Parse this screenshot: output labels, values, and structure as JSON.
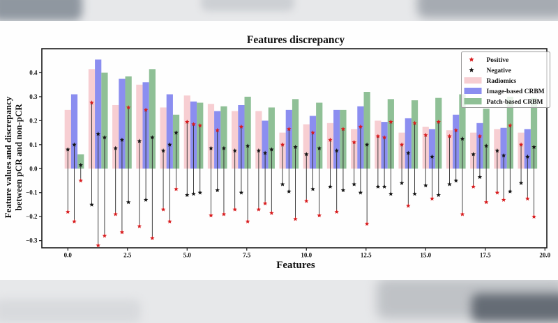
{
  "chart_data": {
    "type": "bar",
    "title": "Features discrepancy",
    "xlabel": "Features",
    "ylabel_line1": "Feature values and discrepancy",
    "ylabel_line2": "between pCR and non-pCR",
    "x": [
      0,
      1,
      2,
      3,
      4,
      5,
      6,
      7,
      8,
      9,
      10,
      11,
      12,
      13,
      14,
      15,
      16,
      17,
      18,
      19
    ],
    "x_ticks": [
      0.0,
      2.5,
      5.0,
      7.5,
      10.0,
      12.5,
      15.0,
      17.5,
      20.0
    ],
    "x_tick_labels": [
      "0.0",
      "2.5",
      "5.0",
      "7.5",
      "10.0",
      "12.5",
      "15.0",
      "17.5",
      "20.0"
    ],
    "y_ticks": [
      0.4,
      0.3,
      0.2,
      0.1,
      0.0,
      -0.1,
      -0.2,
      -0.3
    ],
    "y_tick_labels": [
      "0.4",
      "0.3",
      "0.2",
      "0.1",
      "0.0",
      "−0.1",
      "−0.2",
      "−0.3"
    ],
    "xlim": [
      -1.09,
      20.08
    ],
    "ylim": [
      -0.33,
      0.5
    ],
    "bar_width": 0.27,
    "bar_offsets": [
      0,
      0.27,
      0.54
    ],
    "grid": false,
    "legend_position": "upper right",
    "series": [
      {
        "name": "Radiomics",
        "color": "#f6c9cd",
        "values": [
          0.245,
          0.415,
          0.265,
          0.35,
          0.255,
          0.305,
          0.27,
          0.24,
          0.24,
          0.15,
          0.185,
          0.19,
          0.165,
          0.2,
          0.15,
          0.175,
          0.16,
          0.15,
          0.165,
          0.15
        ]
      },
      {
        "name": "Image-based CRBM",
        "color": "#7e82ee",
        "values": [
          0.31,
          0.455,
          0.375,
          0.36,
          0.31,
          0.28,
          0.24,
          0.265,
          0.2,
          0.245,
          0.22,
          0.245,
          0.26,
          0.195,
          0.21,
          0.165,
          0.225,
          0.19,
          0.17,
          0.165
        ]
      },
      {
        "name": "Patch-based CRBM",
        "color": "#83b98b",
        "values": [
          0.06,
          0.4,
          0.385,
          0.415,
          0.225,
          0.275,
          0.26,
          0.3,
          0.255,
          0.29,
          0.275,
          0.245,
          0.32,
          0.29,
          0.285,
          0.295,
          0.31,
          0.25,
          0.3,
          0.295
        ]
      }
    ],
    "markers": {
      "positive": {
        "name": "Positive",
        "color": "#d81c1e",
        "values": [
          [
            -0.18,
            -0.22,
            -0.05
          ],
          [
            0.275,
            -0.32,
            -0.28
          ],
          [
            -0.19,
            -0.265,
            0.255
          ],
          [
            -0.24,
            0.245,
            -0.29
          ],
          [
            -0.17,
            -0.22,
            -0.085
          ],
          [
            0.195,
            0.185,
            0.18
          ],
          [
            -0.195,
            0.16,
            -0.19
          ],
          [
            -0.17,
            0.175,
            -0.22
          ],
          [
            -0.17,
            -0.145,
            -0.185
          ],
          [
            0.1,
            0.165,
            -0.21
          ],
          [
            -0.135,
            0.15,
            -0.195
          ],
          [
            0.12,
            -0.18,
            0.165
          ],
          [
            0.11,
            0.175,
            -0.23
          ],
          [
            0.135,
            0.13,
            0.195
          ],
          [
            0.1,
            -0.155,
            0.19
          ],
          [
            0.14,
            -0.125,
            0.195
          ],
          [
            0.135,
            0.16,
            -0.19
          ],
          [
            -0.075,
            0.135,
            -0.14
          ],
          [
            -0.1,
            -0.13,
            0.18
          ],
          [
            0.1,
            -0.125,
            -0.2
          ]
        ]
      },
      "negative": {
        "name": "Negative",
        "color": "#151515",
        "values": [
          [
            0.08,
            0.1,
            0.015
          ],
          [
            -0.15,
            0.145,
            0.13
          ],
          [
            0.085,
            0.12,
            -0.14
          ],
          [
            0.115,
            -0.13,
            0.13
          ],
          [
            0.075,
            0.1,
            0.15
          ],
          [
            -0.11,
            -0.105,
            -0.1
          ],
          [
            0.085,
            -0.09,
            0.085
          ],
          [
            0.075,
            -0.1,
            0.095
          ],
          [
            0.075,
            0.065,
            0.08
          ],
          [
            -0.065,
            -0.095,
            0.09
          ],
          [
            0.06,
            -0.085,
            0.085
          ],
          [
            -0.075,
            0.075,
            -0.09
          ],
          [
            -0.065,
            -0.1,
            0.1
          ],
          [
            -0.075,
            -0.075,
            -0.105
          ],
          [
            -0.06,
            0.065,
            -0.105
          ],
          [
            -0.07,
            0.05,
            -0.11
          ],
          [
            -0.065,
            -0.05,
            0.125
          ],
          [
            0.06,
            -0.035,
            0.095
          ],
          [
            0.075,
            0.055,
            -0.095
          ],
          [
            -0.06,
            0.05,
            0.09
          ]
        ]
      }
    },
    "legend": [
      "Positive",
      "Negative",
      "Radiomics",
      "Image-based CRBM",
      "Patch-based CRBM"
    ]
  }
}
